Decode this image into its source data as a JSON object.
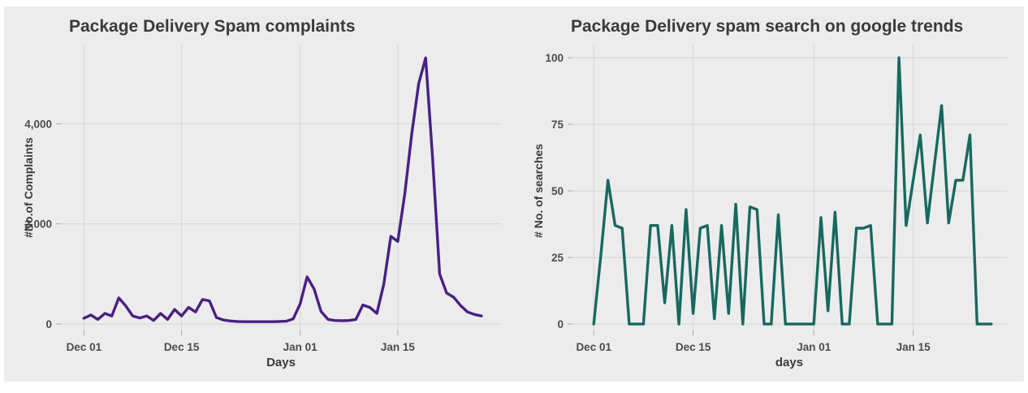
{
  "figure": {
    "background_color": "#ececec",
    "page_background": "#ffffff",
    "grid_color": "#d5d5d5",
    "tick_mark_color": "#a9a9a9",
    "title_color": "#3a3a3a",
    "label_color": "#4c4c4c"
  },
  "chart_data": [
    {
      "type": "line",
      "title": "Package Delivery Spam complaints",
      "xlabel": "Days",
      "ylabel": "#No.of Complaints",
      "line_color": "#4a2083",
      "x_unit": "days since Dec 01 (daily series)",
      "x_ticks": [
        {
          "label": "Dec 01",
          "day": 0
        },
        {
          "label": "Dec 15",
          "day": 14
        },
        {
          "label": "Jan 01",
          "day": 31
        },
        {
          "label": "Jan 15",
          "day": 45
        }
      ],
      "y_ticks": [
        {
          "label": "0",
          "value": 0
        },
        {
          "label": "2,000",
          "value": 2000
        },
        {
          "label": "4,000",
          "value": 4000
        }
      ],
      "xlim": [
        -3.3,
        59.8
      ],
      "ylim": [
        -130,
        5580
      ],
      "grid": true,
      "values": [
        115,
        180,
        90,
        210,
        160,
        520,
        360,
        160,
        120,
        160,
        70,
        210,
        90,
        290,
        160,
        330,
        240,
        490,
        460,
        130,
        80,
        60,
        50,
        45,
        45,
        45,
        45,
        45,
        50,
        55,
        100,
        400,
        940,
        700,
        250,
        90,
        70,
        65,
        70,
        90,
        380,
        330,
        210,
        800,
        1750,
        1650,
        2600,
        3800,
        4800,
        5315,
        3300,
        1000,
        620,
        535,
        370,
        240,
        190,
        160
      ]
    },
    {
      "type": "line",
      "title": "Package Delivery spam search on google trends",
      "xlabel": "days",
      "ylabel": "# No. of searches",
      "line_color": "#17695f",
      "x_unit": "days since Dec 01 (daily series)",
      "x_ticks": [
        {
          "label": "Dec 01",
          "day": 0
        },
        {
          "label": "Dec 15",
          "day": 14
        },
        {
          "label": "Jan 01",
          "day": 31
        },
        {
          "label": "Jan 15",
          "day": 45
        }
      ],
      "y_ticks": [
        {
          "label": "0",
          "value": 0
        },
        {
          "label": "25",
          "value": 25
        },
        {
          "label": "50",
          "value": 50
        },
        {
          "label": "75",
          "value": 75
        },
        {
          "label": "100",
          "value": 100
        }
      ],
      "xlim": [
        -3.0,
        58.2
      ],
      "ylim": [
        -2.4,
        104.9
      ],
      "grid": true,
      "values": [
        0,
        26,
        54,
        37,
        36,
        0,
        0,
        0,
        37,
        37,
        8,
        37,
        0,
        43,
        4,
        36,
        37,
        2,
        37,
        4,
        45,
        0,
        44,
        43,
        0,
        0,
        41,
        0,
        0,
        0,
        0,
        0,
        40,
        5,
        42,
        0,
        0,
        36,
        36,
        37,
        0,
        0,
        0,
        100,
        37,
        54,
        71,
        38,
        60,
        82,
        38,
        54,
        54,
        71,
        0,
        0,
        0
      ]
    }
  ]
}
